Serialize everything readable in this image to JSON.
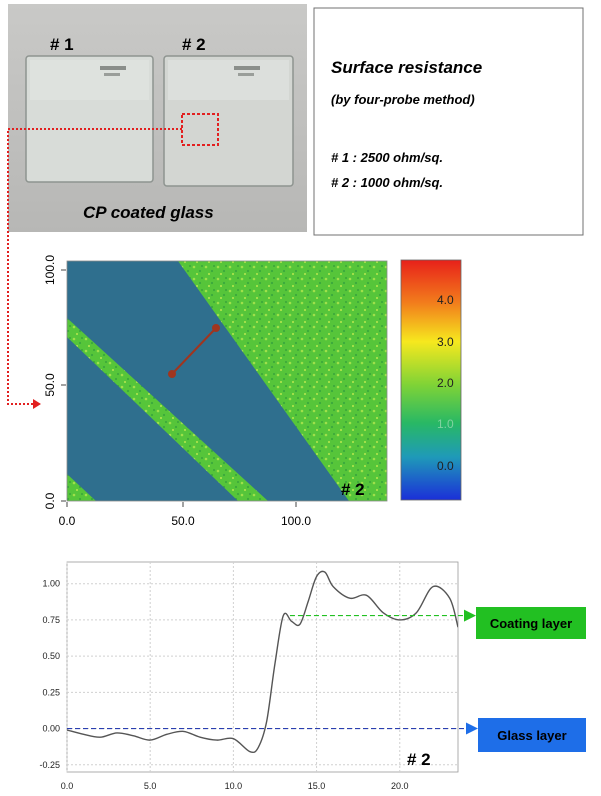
{
  "photo": {
    "caption": "CP coated glass",
    "sample1_label": "# 1",
    "sample2_label": "# 2"
  },
  "info_box": {
    "title": "Surface resistance",
    "method": "(by four-probe method)",
    "result1": "# 1 : 2500 ohm/sq.",
    "result2": "# 2 : 1000 ohm/sq."
  },
  "afm_map": {
    "x_ticks": [
      "0.0",
      "50.0",
      "100.0"
    ],
    "y_ticks": [
      "0.0",
      "50.0",
      "100.0"
    ],
    "colorbar_ticks": [
      "4.0",
      "3.0",
      "2.0",
      "1.0",
      "0.0"
    ],
    "sample_label": "# 2",
    "colors": {
      "glass": "#2f6f8e",
      "coating": "#55c63a",
      "line_profile": "#a0351f"
    }
  },
  "profile": {
    "x_ticks": [
      "0.0",
      "5.0",
      "10.0",
      "15.0",
      "20.0"
    ],
    "y_ticks": [
      "1.00",
      "0.75",
      "0.50",
      "0.25",
      "0.00",
      "-0.25"
    ],
    "sample_label": "# 2",
    "coating_label": "Coating layer",
    "glass_label": "Glass layer",
    "colors": {
      "coating": "#22c022",
      "glass": "#1e6ee8",
      "curve": "#555555"
    }
  },
  "chart_data": {
    "type": "line",
    "xlim": [
      0,
      23.5
    ],
    "ylim": [
      -0.3,
      1.15
    ],
    "x": [
      0,
      1,
      2,
      3,
      4,
      5,
      6,
      7,
      8,
      9,
      10,
      11,
      11.5,
      12,
      12.5,
      13,
      13.5,
      14,
      14.5,
      15,
      15.5,
      16,
      17,
      18,
      19,
      20,
      21,
      22,
      23,
      23.5
    ],
    "values": [
      -0.01,
      -0.04,
      -0.06,
      -0.03,
      -0.05,
      -0.08,
      -0.04,
      -0.02,
      -0.06,
      -0.08,
      -0.07,
      -0.16,
      -0.13,
      0.05,
      0.45,
      0.78,
      0.74,
      0.72,
      0.88,
      1.05,
      1.08,
      0.98,
      0.9,
      0.92,
      0.8,
      0.75,
      0.8,
      0.98,
      0.9,
      0.7
    ],
    "reference_lines": [
      0.78,
      0.0
    ]
  }
}
